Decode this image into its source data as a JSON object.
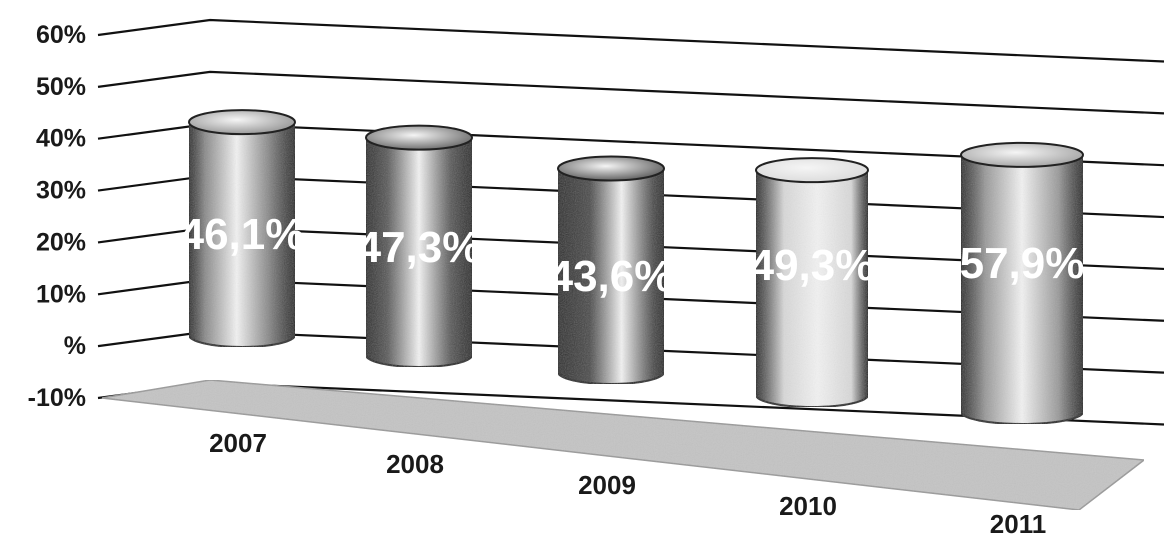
{
  "chart_data": {
    "type": "bar",
    "style": "3d-cylinder",
    "categories": [
      "2007",
      "2008",
      "2009",
      "2010",
      "2011"
    ],
    "values": [
      46.1,
      47.3,
      43.6,
      49.3,
      57.9
    ],
    "data_labels": [
      "46,1%",
      "47,3%",
      "43,6%",
      "49,3%",
      "57,9%"
    ],
    "y_ticks": [
      "-10%",
      "%",
      "10%",
      "20%",
      "30%",
      "40%",
      "50%",
      "60%"
    ],
    "ylim": [
      -10,
      60
    ],
    "title": "",
    "xlabel": "",
    "ylabel": "",
    "grid": true,
    "legend": "none",
    "colors": {
      "bar_fills": [
        "#8a8a8a",
        "#5a5a5a",
        "#4a4a4a",
        "#d8d8d8",
        "#9a9a9a"
      ],
      "floor": "#c4c4c4",
      "gridlines": "#111111",
      "data_label": "#ffffff"
    }
  }
}
